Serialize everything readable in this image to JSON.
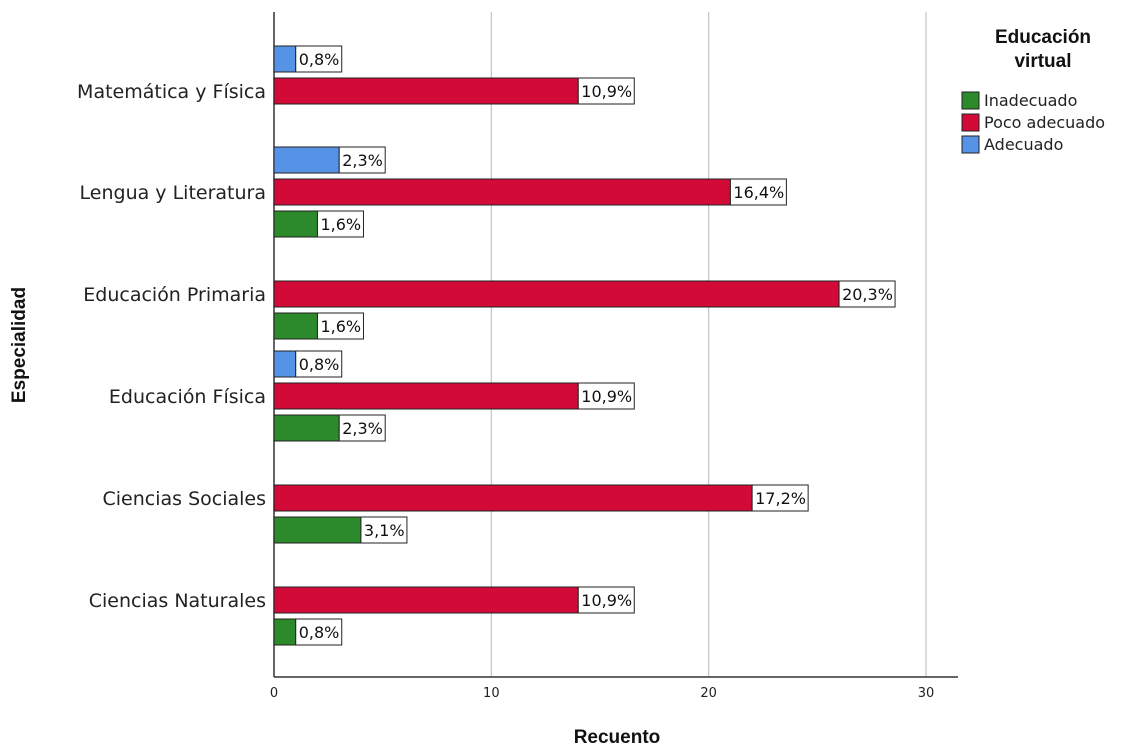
{
  "chart_data": {
    "type": "bar",
    "orientation": "horizontal",
    "xlabel": "Recuento",
    "ylabel": "Especialidad",
    "xlim": [
      0,
      30
    ],
    "xticks": [
      "0",
      "10",
      "20",
      "30"
    ],
    "grid": true,
    "legend_position": "top-right",
    "legend_title": [
      "Educación",
      "virtual"
    ],
    "categories": [
      "Matemática y Física",
      "Lengua y Literatura",
      "Educación Primaria",
      "Educación Física",
      "Ciencias Sociales",
      "Ciencias Naturales"
    ],
    "series": [
      {
        "name": "Adecuado",
        "color": "#5593e6",
        "values": [
          1,
          3,
          null,
          1,
          null,
          null
        ],
        "labels": [
          "0,8%",
          "2,3%",
          null,
          "0,8%",
          null,
          null
        ]
      },
      {
        "name": "Poco adecuado",
        "color": "#d20a37",
        "values": [
          14,
          21,
          26,
          14,
          22,
          14
        ],
        "labels": [
          "10,9%",
          "16,4%",
          "20,3%",
          "10,9%",
          "17,2%",
          "10,9%"
        ]
      },
      {
        "name": "Inadecuado",
        "color": "#2c8a2c",
        "values": [
          null,
          2,
          2,
          3,
          4,
          1
        ],
        "labels": [
          null,
          "1,6%",
          "1,6%",
          "2,3%",
          "3,1%",
          "0,8%"
        ]
      }
    ],
    "legend": [
      {
        "name": "Inadecuado",
        "color": "#2c8a2c"
      },
      {
        "name": "Poco adecuado",
        "color": "#d20a37"
      },
      {
        "name": "Adecuado",
        "color": "#5593e6"
      }
    ]
  }
}
